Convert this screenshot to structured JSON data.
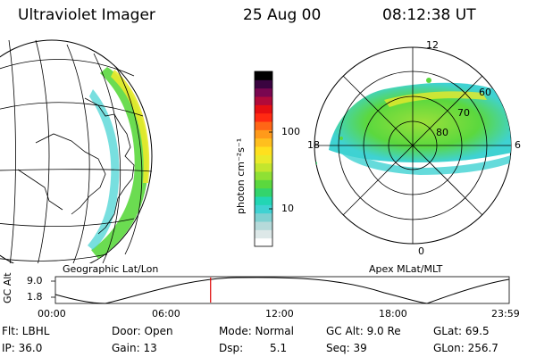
{
  "header": {
    "instrument": "Ultraviolet Imager",
    "date": "25 Aug 00",
    "time": "08:12:38 UT"
  },
  "left_panel": {
    "caption": "Geographic Lat/Lon"
  },
  "right_panel": {
    "caption": "Apex MLat/MLT",
    "mlt_labels": [
      "12",
      "6",
      "0",
      "18"
    ],
    "lat_labels": [
      "60",
      "70",
      "80"
    ]
  },
  "colorbar": {
    "label": "photon cm⁻²s⁻¹",
    "ticks": [
      "100",
      "10"
    ],
    "colors": [
      "#ffffff",
      "#dde8e8",
      "#b6dada",
      "#7fd1d1",
      "#3fd2d2",
      "#22d6b4",
      "#33d46c",
      "#5bd83e",
      "#8fe034",
      "#c3e62e",
      "#eaea2a",
      "#ffe01e",
      "#ffbf1e",
      "#ff9a1a",
      "#ff6616",
      "#ff2a12",
      "#e60f12",
      "#b10a3a",
      "#7a0650",
      "#3a0440",
      "#000000"
    ]
  },
  "timeline": {
    "axis_label": "GC Alt",
    "ymax": "9.0",
    "ymin": "1.8",
    "ticks": [
      "00:00",
      "06:00",
      "12:00",
      "18:00",
      "23:59"
    ],
    "current_time_fraction": 0.342,
    "marker_color": "#dd0000"
  },
  "info": {
    "flt": "Flt: LBHL",
    "ip": "IP: 36.0",
    "door": "Door: Open",
    "gain": "Gain: 13",
    "mode": "Mode: Normal",
    "dsp_label": "Dsp:",
    "dsp_value": "5.1",
    "gcalt": "GC Alt: 9.0 Re",
    "seq": "Seq: 39",
    "glat": "GLat:  69.5",
    "glon": "GLon: 256.7"
  }
}
